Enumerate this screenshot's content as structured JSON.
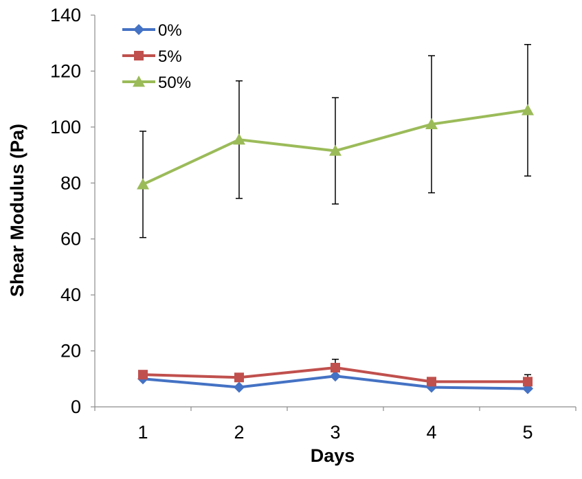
{
  "chart_data": {
    "type": "line",
    "title": "",
    "xlabel": "Days",
    "ylabel": "Shear Modulus (Pa)",
    "categories": [
      "1",
      "2",
      "3",
      "4",
      "5"
    ],
    "x": [
      1,
      2,
      3,
      4,
      5
    ],
    "xlim": [
      0.5,
      5.5
    ],
    "ylim": [
      0,
      140
    ],
    "yticks": [
      0,
      20,
      40,
      60,
      80,
      100,
      120,
      140
    ],
    "yticklabels": [
      "0",
      "20",
      "40",
      "60",
      "80",
      "100",
      "120",
      "140"
    ],
    "grid": false,
    "legend": "top-left",
    "series": [
      {
        "name": "0%",
        "color": "#4472C4",
        "marker": "diamond",
        "values": [
          10,
          7,
          11,
          7,
          6.5
        ],
        "error": [
          0,
          0,
          0,
          0,
          0
        ]
      },
      {
        "name": "5%",
        "color": "#C0504D",
        "marker": "square",
        "values": [
          11.5,
          10.5,
          14,
          9,
          9
        ],
        "error": [
          0,
          0,
          3,
          0,
          2.5
        ]
      },
      {
        "name": "50%",
        "color": "#9BBB59",
        "marker": "triangle",
        "values": [
          79.5,
          95.5,
          91.5,
          101,
          106
        ],
        "error": [
          19,
          21,
          19,
          24.5,
          23.5
        ]
      }
    ]
  }
}
